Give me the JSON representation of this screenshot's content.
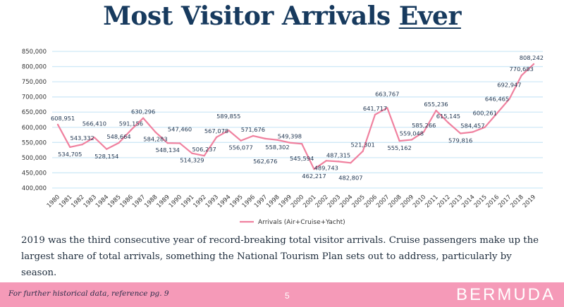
{
  "title": {
    "main": "Most Visitor Arrivals ",
    "underlined": "Ever"
  },
  "chart_data": {
    "type": "line",
    "title": "",
    "xlabel": "",
    "ylabel": "",
    "ylim": [
      400000,
      850000
    ],
    "y_ticks": [
      "400,000",
      "450,000",
      "500,000",
      "550,000",
      "600,000",
      "650,000",
      "700,000",
      "750,000",
      "800,000",
      "850,000"
    ],
    "grid": true,
    "legend_position": "bottom",
    "x": [
      "1980",
      "1981",
      "1982",
      "1983",
      "1984",
      "1985",
      "1986",
      "1987",
      "1988",
      "1989",
      "1990",
      "1991",
      "1992",
      "1993",
      "1994",
      "1995",
      "1996",
      "1997",
      "1998",
      "1999",
      "2000",
      "2001",
      "2002",
      "2003",
      "2004",
      "2005",
      "2006",
      "2007",
      "2008",
      "2009",
      "2010",
      "2011",
      "2012",
      "2013",
      "2014",
      "2015",
      "2016",
      "2017",
      "2018",
      "2019"
    ],
    "series": [
      {
        "name": "Arrivals (Air+Cruise+Yacht)",
        "color": "#f0819f",
        "values": [
          608951,
          534705,
          543332,
          566410,
          528154,
          548664,
          591156,
          630296,
          584283,
          548134,
          547460,
          514329,
          506237,
          567078,
          589855,
          556077,
          571676,
          562676,
          558302,
          549398,
          545594,
          462217,
          489743,
          487315,
          482807,
          521301,
          641717,
          663767,
          555162,
          559048,
          585266,
          655236,
          615145,
          579816,
          584457,
          600261,
          646465,
          692947,
          770683,
          808242
        ],
        "labels": [
          "608,951",
          "534,705",
          "543,332",
          "566,410",
          "528,154",
          "548,664",
          "591,156",
          "630,296",
          "584,283",
          "548,134",
          "547,460",
          "514,329",
          "506,237",
          "567,078",
          "589,855",
          "556,077",
          "571,676",
          "562,676",
          "558,302",
          "549,398",
          "545,594",
          "462,217",
          "489,743",
          "487,315",
          "482,807",
          "521,301",
          "641,717",
          "663,767",
          "555,162",
          "559,048",
          "585,266",
          "655,236",
          "615,145",
          "579,816",
          "584,457",
          "600,261",
          "646,465",
          "692,947",
          "770,683",
          "808,242"
        ]
      }
    ]
  },
  "description": "2019 was the third consecutive year of record-breaking total visitor arrivals. Cruise passengers make up the largest share of total arrivals, something the National Tourism Plan sets out to address, particularly by season.",
  "footer": {
    "note": "For further historical data, reference pg. 9",
    "page": "5",
    "brand": "BERMUDA"
  }
}
